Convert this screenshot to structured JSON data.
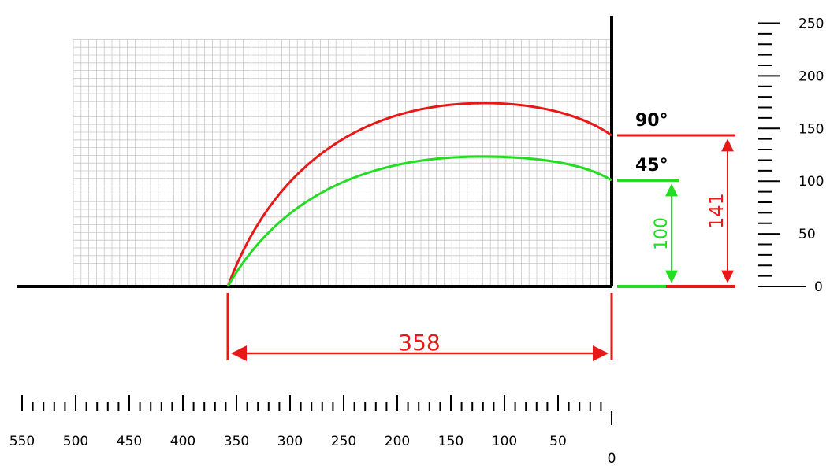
{
  "diagram": {
    "curve_labels": {
      "upper": "90°",
      "lower": "45°"
    },
    "dimensions": {
      "range": "358",
      "upper_height": "141",
      "lower_height": "100"
    },
    "horizontal_scale": {
      "labels": [
        "550",
        "500",
        "450",
        "400",
        "350",
        "300",
        "250",
        "200",
        "150",
        "100",
        "50",
        "0"
      ],
      "max": 550,
      "major_step": 50,
      "minor_step": 10
    },
    "vertical_scale": {
      "labels": [
        "250",
        "200",
        "150",
        "100",
        "50",
        "0"
      ],
      "max": 250,
      "major_step": 50,
      "minor_step": 10
    },
    "colors": {
      "upper_curve": "#e81818",
      "lower_curve": "#22dd22",
      "axis": "#000000",
      "grid": "#c8c8c8"
    }
  }
}
